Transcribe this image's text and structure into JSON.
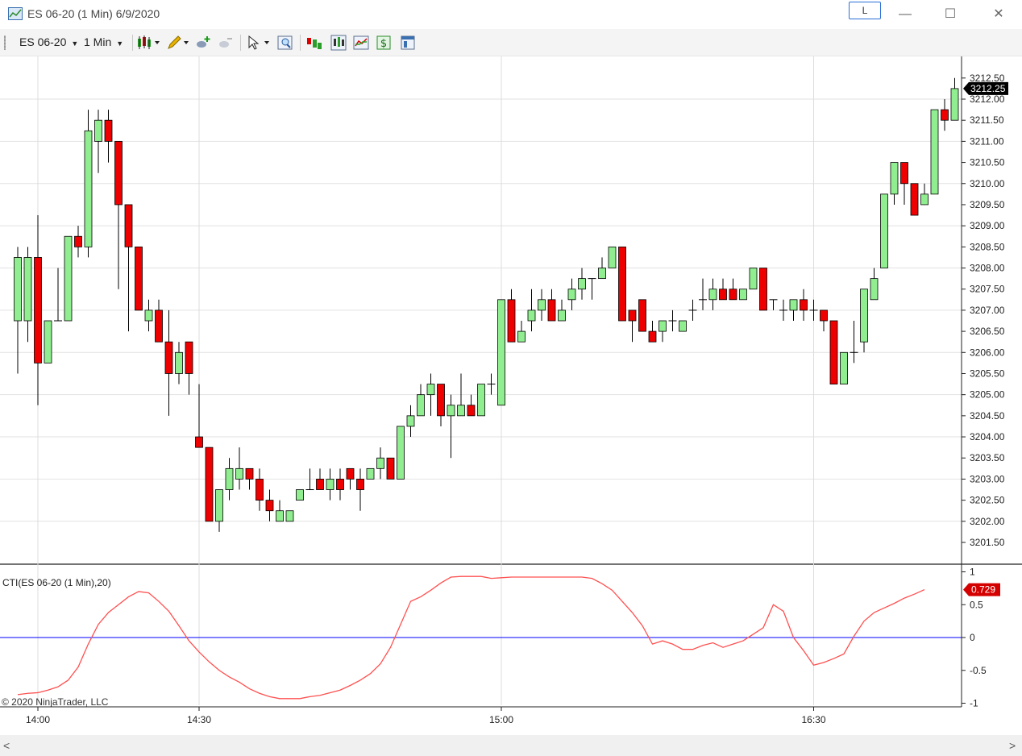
{
  "window": {
    "title": "ES 06-20 (1 Min)  6/9/2020",
    "link_label": "L",
    "minimize_glyph": "—",
    "maximize_glyph": "☐",
    "close_glyph": "✕"
  },
  "toolbar": {
    "instrument_label": "ES 06-20",
    "interval_label": "1 Min",
    "caret": "▼",
    "icons": [
      "chart-style-icon",
      "drawing-tool-icon",
      "add-indicator-icon",
      "remove-indicator-icon",
      "pointer-icon",
      "zoom-icon",
      "data-series-icon",
      "chart-trader-icon",
      "strategies-icon",
      "dollar-icon",
      "properties-icon"
    ]
  },
  "colors": {
    "up_body": "#90ee90",
    "down_body": "#ee0000",
    "wick": "#000000",
    "cti_line": "#ff5050",
    "zero_line": "#0000ff",
    "price_label_bg": "#000000",
    "cti_label_bg": "#d40000"
  },
  "copyright": "© 2020 NinjaTrader, LLC",
  "scrollbar": {
    "left_glyph": "<",
    "right_glyph": ">"
  },
  "chart_data": [
    {
      "type": "candlestick",
      "title": "",
      "ylim": [
        3201.2,
        3212.8
      ],
      "price_ticks": [
        "3212.50",
        "3212.00",
        "3211.50",
        "3211.00",
        "3210.50",
        "3210.00",
        "3209.50",
        "3209.00",
        "3208.50",
        "3208.00",
        "3207.50",
        "3207.00",
        "3206.50",
        "3206.00",
        "3205.50",
        "3205.00",
        "3204.50",
        "3204.00",
        "3203.50",
        "3203.00",
        "3202.50",
        "3202.00",
        "3201.50"
      ],
      "time_ticks": [
        {
          "bar": 2,
          "label": "14:00"
        },
        {
          "bar": 18,
          "label": "14:30"
        },
        {
          "bar": 48,
          "label": "15:00"
        },
        {
          "bar": 79,
          "label": "16:30"
        }
      ],
      "last_price_label": "3212.25",
      "last_price": 3212.25,
      "bars": [
        {
          "o": 3206.75,
          "h": 3208.5,
          "l": 3205.5,
          "c": 3208.25
        },
        {
          "o": 3206.75,
          "h": 3208.5,
          "l": 3206.25,
          "c": 3208.25
        },
        {
          "o": 3208.25,
          "h": 3209.25,
          "l": 3204.75,
          "c": 3205.75
        },
        {
          "o": 3205.75,
          "h": 3206.75,
          "l": 3205.75,
          "c": 3206.75
        },
        {
          "o": 3206.75,
          "h": 3208.0,
          "l": 3206.75,
          "c": 3206.75
        },
        {
          "o": 3206.75,
          "h": 3208.75,
          "l": 3206.75,
          "c": 3208.75
        },
        {
          "o": 3208.75,
          "h": 3209.0,
          "l": 3208.25,
          "c": 3208.5
        },
        {
          "o": 3208.5,
          "h": 3211.75,
          "l": 3208.25,
          "c": 3211.25
        },
        {
          "o": 3211.0,
          "h": 3211.75,
          "l": 3210.25,
          "c": 3211.5
        },
        {
          "o": 3211.5,
          "h": 3211.75,
          "l": 3210.5,
          "c": 3211.0
        },
        {
          "o": 3211.0,
          "h": 3211.0,
          "l": 3207.5,
          "c": 3209.5
        },
        {
          "o": 3209.5,
          "h": 3209.5,
          "l": 3206.5,
          "c": 3208.5
        },
        {
          "o": 3208.5,
          "h": 3208.5,
          "l": 3207.0,
          "c": 3207.0
        },
        {
          "o": 3206.75,
          "h": 3207.25,
          "l": 3206.5,
          "c": 3207.0
        },
        {
          "o": 3207.0,
          "h": 3207.25,
          "l": 3206.25,
          "c": 3206.25
        },
        {
          "o": 3206.25,
          "h": 3207.0,
          "l": 3204.5,
          "c": 3205.5
        },
        {
          "o": 3205.5,
          "h": 3206.25,
          "l": 3205.25,
          "c": 3206.0
        },
        {
          "o": 3206.25,
          "h": 3206.25,
          "l": 3205.0,
          "c": 3205.5
        },
        {
          "o": 3204.0,
          "h": 3205.25,
          "l": 3203.75,
          "c": 3203.75
        },
        {
          "o": 3203.75,
          "h": 3203.75,
          "l": 3202.0,
          "c": 3202.0
        },
        {
          "o": 3202.0,
          "h": 3202.75,
          "l": 3201.75,
          "c": 3202.75
        },
        {
          "o": 3202.75,
          "h": 3203.5,
          "l": 3202.5,
          "c": 3203.25
        },
        {
          "o": 3203.0,
          "h": 3203.75,
          "l": 3202.75,
          "c": 3203.25
        },
        {
          "o": 3203.25,
          "h": 3203.25,
          "l": 3202.75,
          "c": 3203.0
        },
        {
          "o": 3203.0,
          "h": 3203.25,
          "l": 3202.25,
          "c": 3202.5
        },
        {
          "o": 3202.5,
          "h": 3202.75,
          "l": 3202.0,
          "c": 3202.25
        },
        {
          "o": 3202.0,
          "h": 3202.5,
          "l": 3202.0,
          "c": 3202.25
        },
        {
          "o": 3202.0,
          "h": 3202.25,
          "l": 3202.0,
          "c": 3202.25
        },
        {
          "o": 3202.5,
          "h": 3202.75,
          "l": 3202.5,
          "c": 3202.75
        },
        {
          "o": 3202.75,
          "h": 3203.25,
          "l": 3202.75,
          "c": 3202.75
        },
        {
          "o": 3203.0,
          "h": 3203.25,
          "l": 3202.75,
          "c": 3202.75
        },
        {
          "o": 3202.75,
          "h": 3203.25,
          "l": 3202.5,
          "c": 3203.0
        },
        {
          "o": 3203.0,
          "h": 3203.25,
          "l": 3202.5,
          "c": 3202.75
        },
        {
          "o": 3203.25,
          "h": 3203.25,
          "l": 3202.75,
          "c": 3203.0
        },
        {
          "o": 3203.0,
          "h": 3203.25,
          "l": 3202.25,
          "c": 3202.75
        },
        {
          "o": 3203.0,
          "h": 3203.25,
          "l": 3203.0,
          "c": 3203.25
        },
        {
          "o": 3203.25,
          "h": 3203.75,
          "l": 3203.0,
          "c": 3203.5
        },
        {
          "o": 3203.5,
          "h": 3203.5,
          "l": 3203.0,
          "c": 3203.0
        },
        {
          "o": 3203.0,
          "h": 3204.25,
          "l": 3203.0,
          "c": 3204.25
        },
        {
          "o": 3204.25,
          "h": 3204.75,
          "l": 3204.0,
          "c": 3204.5
        },
        {
          "o": 3204.5,
          "h": 3205.25,
          "l": 3204.5,
          "c": 3205.0
        },
        {
          "o": 3205.0,
          "h": 3205.5,
          "l": 3204.5,
          "c": 3205.25
        },
        {
          "o": 3205.25,
          "h": 3205.25,
          "l": 3204.25,
          "c": 3204.5
        },
        {
          "o": 3204.5,
          "h": 3205.0,
          "l": 3203.5,
          "c": 3204.75
        },
        {
          "o": 3204.5,
          "h": 3205.5,
          "l": 3204.5,
          "c": 3204.75
        },
        {
          "o": 3204.75,
          "h": 3205.0,
          "l": 3204.5,
          "c": 3204.5
        },
        {
          "o": 3204.5,
          "h": 3205.25,
          "l": 3204.5,
          "c": 3205.25
        },
        {
          "o": 3205.25,
          "h": 3205.5,
          "l": 3205.0,
          "c": 3205.25
        },
        {
          "o": 3204.75,
          "h": 3207.25,
          "l": 3204.75,
          "c": 3207.25
        },
        {
          "o": 3207.25,
          "h": 3207.5,
          "l": 3206.25,
          "c": 3206.25
        },
        {
          "o": 3206.25,
          "h": 3206.75,
          "l": 3206.25,
          "c": 3206.5
        },
        {
          "o": 3206.75,
          "h": 3207.5,
          "l": 3206.5,
          "c": 3207.0
        },
        {
          "o": 3207.0,
          "h": 3207.5,
          "l": 3206.75,
          "c": 3207.25
        },
        {
          "o": 3207.25,
          "h": 3207.5,
          "l": 3206.75,
          "c": 3206.75
        },
        {
          "o": 3206.75,
          "h": 3207.25,
          "l": 3206.75,
          "c": 3207.0
        },
        {
          "o": 3207.25,
          "h": 3207.75,
          "l": 3207.0,
          "c": 3207.5
        },
        {
          "o": 3207.5,
          "h": 3208.0,
          "l": 3207.25,
          "c": 3207.75
        },
        {
          "o": 3207.75,
          "h": 3207.75,
          "l": 3207.25,
          "c": 3207.75
        },
        {
          "o": 3207.75,
          "h": 3208.25,
          "l": 3207.75,
          "c": 3208.0
        },
        {
          "o": 3208.0,
          "h": 3208.5,
          "l": 3208.0,
          "c": 3208.5
        },
        {
          "o": 3208.5,
          "h": 3208.5,
          "l": 3206.75,
          "c": 3206.75
        },
        {
          "o": 3207.0,
          "h": 3207.0,
          "l": 3206.25,
          "c": 3206.75
        },
        {
          "o": 3207.25,
          "h": 3207.25,
          "l": 3206.5,
          "c": 3206.5
        },
        {
          "o": 3206.5,
          "h": 3206.75,
          "l": 3206.25,
          "c": 3206.25
        },
        {
          "o": 3206.5,
          "h": 3206.75,
          "l": 3206.25,
          "c": 3206.75
        },
        {
          "o": 3206.75,
          "h": 3207.0,
          "l": 3206.5,
          "c": 3206.75
        },
        {
          "o": 3206.5,
          "h": 3206.75,
          "l": 3206.5,
          "c": 3206.75
        },
        {
          "o": 3207.0,
          "h": 3207.25,
          "l": 3206.75,
          "c": 3207.0
        },
        {
          "o": 3207.25,
          "h": 3207.75,
          "l": 3207.0,
          "c": 3207.25
        },
        {
          "o": 3207.25,
          "h": 3207.75,
          "l": 3207.0,
          "c": 3207.5
        },
        {
          "o": 3207.5,
          "h": 3207.75,
          "l": 3207.25,
          "c": 3207.25
        },
        {
          "o": 3207.5,
          "h": 3207.75,
          "l": 3207.25,
          "c": 3207.25
        },
        {
          "o": 3207.25,
          "h": 3207.5,
          "l": 3207.25,
          "c": 3207.5
        },
        {
          "o": 3207.5,
          "h": 3208.0,
          "l": 3207.5,
          "c": 3208.0
        },
        {
          "o": 3208.0,
          "h": 3208.0,
          "l": 3207.0,
          "c": 3207.0
        },
        {
          "o": 3207.25,
          "h": 3207.25,
          "l": 3207.0,
          "c": 3207.25
        },
        {
          "o": 3207.0,
          "h": 3207.25,
          "l": 3206.75,
          "c": 3207.0
        },
        {
          "o": 3207.0,
          "h": 3207.25,
          "l": 3206.75,
          "c": 3207.25
        },
        {
          "o": 3207.25,
          "h": 3207.5,
          "l": 3206.75,
          "c": 3207.0
        },
        {
          "o": 3207.0,
          "h": 3207.25,
          "l": 3206.75,
          "c": 3207.0
        },
        {
          "o": 3207.0,
          "h": 3207.0,
          "l": 3206.5,
          "c": 3206.75
        },
        {
          "o": 3206.75,
          "h": 3206.75,
          "l": 3205.25,
          "c": 3205.25
        },
        {
          "o": 3205.25,
          "h": 3206.0,
          "l": 3205.25,
          "c": 3206.0
        },
        {
          "o": 3206.0,
          "h": 3206.75,
          "l": 3205.75,
          "c": 3206.0
        },
        {
          "o": 3206.25,
          "h": 3207.5,
          "l": 3206.0,
          "c": 3207.5
        },
        {
          "o": 3207.25,
          "h": 3208.0,
          "l": 3207.25,
          "c": 3207.75
        },
        {
          "o": 3208.0,
          "h": 3209.75,
          "l": 3208.0,
          "c": 3209.75
        },
        {
          "o": 3209.75,
          "h": 3210.5,
          "l": 3209.5,
          "c": 3210.5
        },
        {
          "o": 3210.5,
          "h": 3210.5,
          "l": 3209.5,
          "c": 3210.0
        },
        {
          "o": 3210.0,
          "h": 3210.0,
          "l": 3209.25,
          "c": 3209.25
        },
        {
          "o": 3209.5,
          "h": 3210.0,
          "l": 3209.5,
          "c": 3209.75
        },
        {
          "o": 3209.75,
          "h": 3211.75,
          "l": 3209.75,
          "c": 3211.75
        },
        {
          "o": 3211.75,
          "h": 3212.0,
          "l": 3211.25,
          "c": 3211.5
        },
        {
          "o": 3211.5,
          "h": 3212.5,
          "l": 3211.5,
          "c": 3212.25
        }
      ]
    },
    {
      "type": "line",
      "title": "CTI(ES 06-20 (1 Min),20)",
      "ylim": [
        -1,
        1
      ],
      "y_ticks": [
        "1",
        "0.5",
        "0",
        "-0.5",
        "-1"
      ],
      "zero_line": 0,
      "last_value_label": "0.729",
      "last_value": 0.729,
      "series": [
        {
          "values": [
            -0.87,
            -0.85,
            -0.84,
            -0.8,
            -0.75,
            -0.65,
            -0.45,
            -0.1,
            0.2,
            0.38,
            0.5,
            0.62,
            0.7,
            0.68,
            0.55,
            0.4,
            0.18,
            -0.05,
            -0.22,
            -0.37,
            -0.5,
            -0.6,
            -0.68,
            -0.78,
            -0.85,
            -0.9,
            -0.93,
            -0.93,
            -0.93,
            -0.9,
            -0.88,
            -0.84,
            -0.8,
            -0.73,
            -0.65,
            -0.55,
            -0.4,
            -0.15,
            0.2,
            0.55,
            0.62,
            0.72,
            0.83,
            0.92,
            0.93,
            0.93,
            0.93,
            0.9,
            0.91,
            0.92,
            0.92,
            0.92,
            0.92,
            0.92,
            0.92,
            0.92,
            0.92,
            0.9,
            0.82,
            0.72,
            0.55,
            0.38,
            0.18,
            -0.1,
            -0.05,
            -0.1,
            -0.18,
            -0.18,
            -0.12,
            -0.08,
            -0.15,
            -0.1,
            -0.05,
            0.05,
            0.15,
            0.5,
            0.4,
            0.0,
            -0.2,
            -0.42,
            -0.38,
            -0.32,
            -0.25,
            0.02,
            0.25,
            0.38,
            0.45,
            0.52,
            0.6,
            0.66,
            0.729
          ]
        }
      ]
    }
  ]
}
